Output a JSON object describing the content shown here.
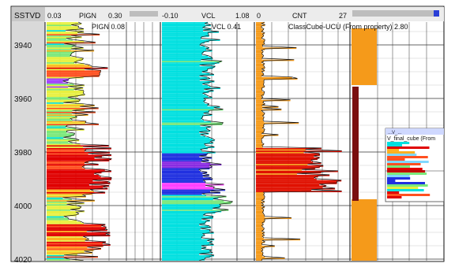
{
  "title_fragment": "",
  "depth_track": {
    "header": "SSTVD",
    "ticks": [
      "3940",
      "3960",
      "3980",
      "4000",
      "4020"
    ]
  },
  "tracks": [
    {
      "id": "pign",
      "name": "PIGN",
      "min": "0.03",
      "max": "0.30",
      "value_label": "PIGN 0.08"
    },
    {
      "id": "vcl",
      "name": "VCL",
      "min": "-0.10",
      "max": "1.08",
      "value_label": "VCL 0.41"
    },
    {
      "id": "cnt",
      "name": "CNT",
      "min": "0",
      "max": "27",
      "value_label": "ClassCube-UCU (From property) 2.80"
    }
  ],
  "inset": {
    "header": "...V_...",
    "subtitle": "V_final_cube (From"
  },
  "colors": {
    "depth_bg": "#d9d9d9",
    "grid": "#333333",
    "orange": "#f59a1a",
    "maroon": "#7a0f0f",
    "blue_header": "#2a3fd6"
  }
}
